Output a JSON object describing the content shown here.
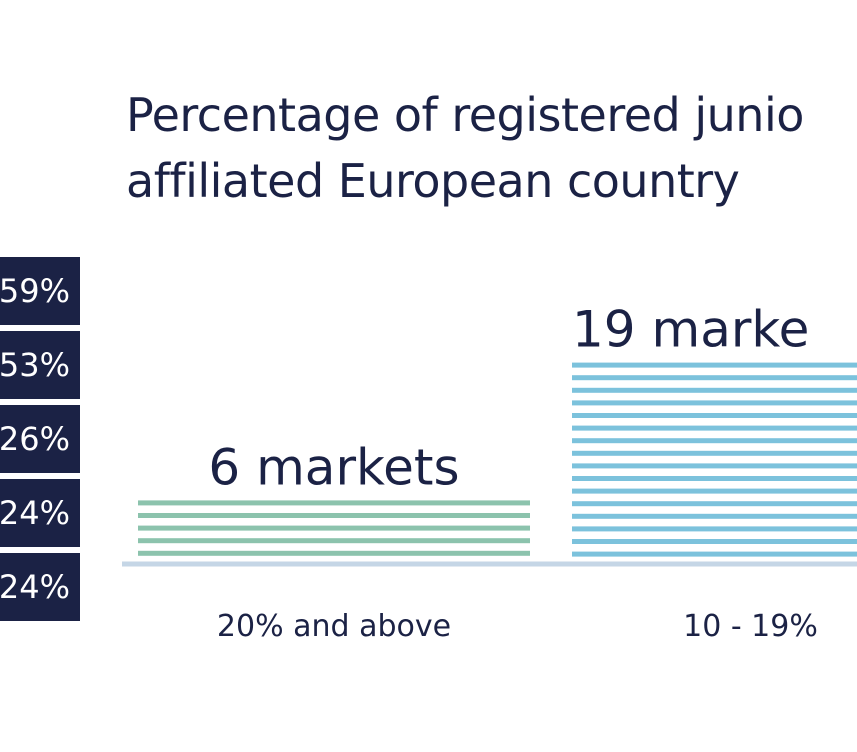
{
  "chart_data": {
    "type": "bar",
    "title": "Percentage of registered junio\naffiliated European country",
    "categories": [
      "20% and above",
      "10 - 19%"
    ],
    "values": [
      6,
      19
    ],
    "value_labels": [
      "6 markets",
      "19 marke"
    ],
    "colors": [
      "#8cc3ad",
      "#7cc2dc"
    ],
    "baseline_color": "#c5d6e6",
    "left_labels": [
      "59%",
      "53%",
      "26%",
      "24%",
      "24%"
    ]
  }
}
